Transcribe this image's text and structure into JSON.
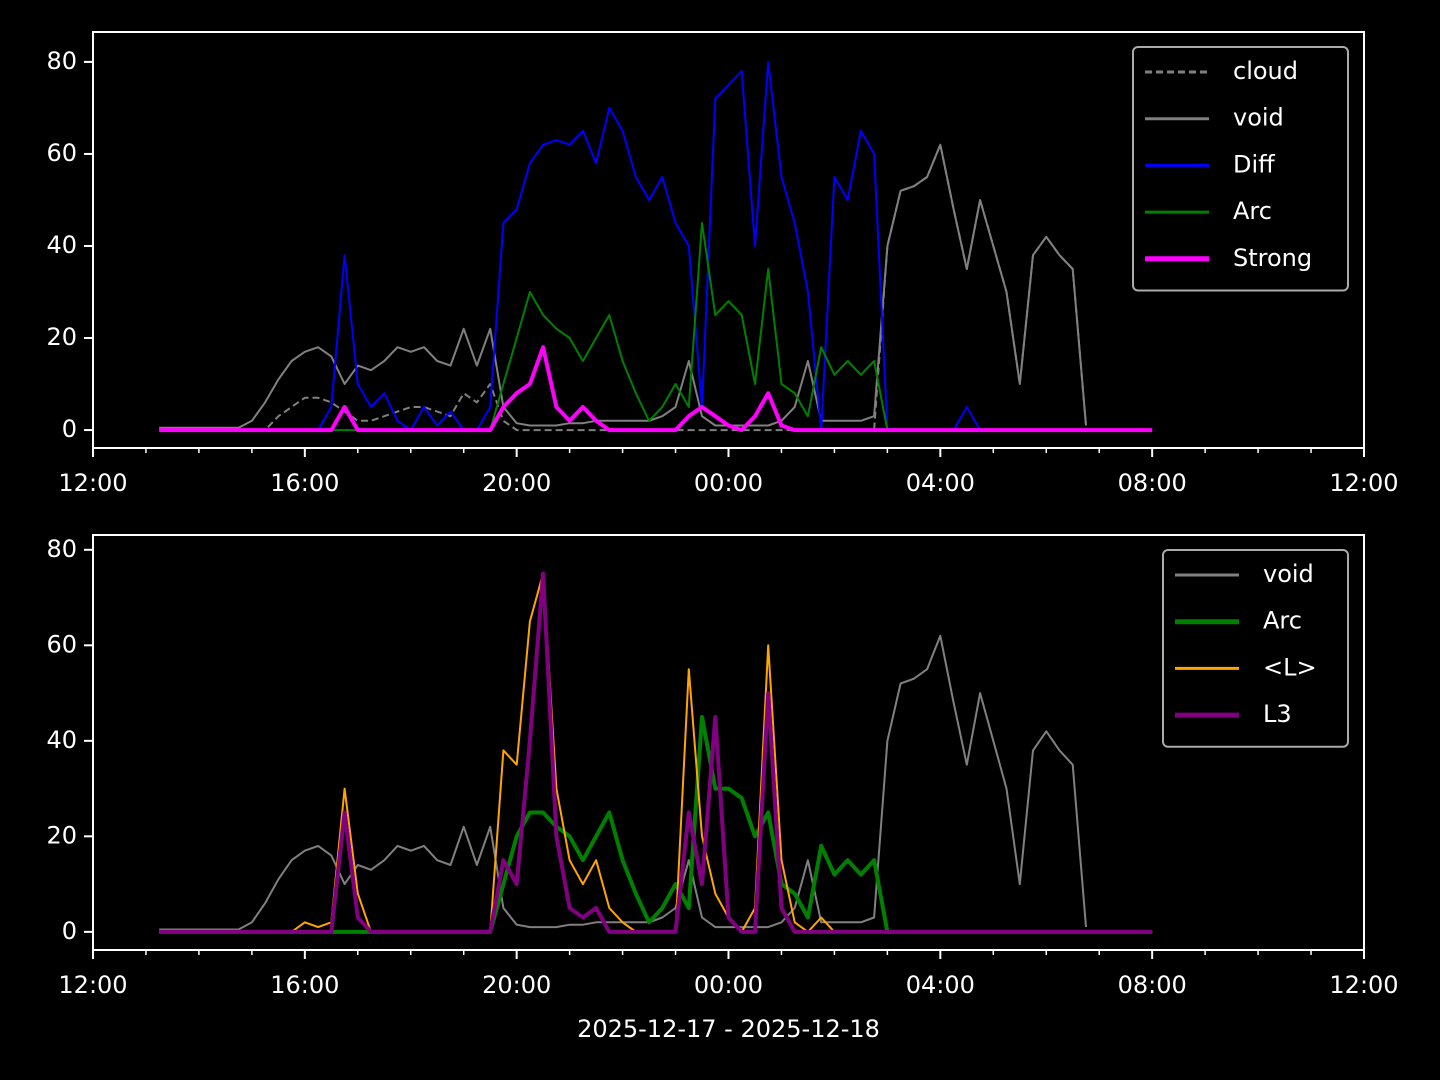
{
  "chart_data": [
    {
      "type": "line",
      "x": [
        1.25,
        1.5,
        1.75,
        2,
        2.25,
        2.5,
        2.75,
        3,
        3.25,
        3.5,
        3.75,
        4,
        4.25,
        4.5,
        4.75,
        5,
        5.25,
        5.5,
        5.75,
        6,
        6.25,
        6.5,
        6.75,
        7,
        7.25,
        7.5,
        7.75,
        8,
        8.25,
        8.5,
        8.75,
        9,
        9.25,
        9.5,
        9.75,
        10,
        10.25,
        10.5,
        10.75,
        11,
        11.25,
        11.5,
        11.75,
        12,
        12.25,
        12.5,
        12.75,
        13,
        13.25,
        13.5,
        13.75,
        14,
        14.25,
        14.5,
        14.75,
        15,
        15.25,
        15.5,
        15.75,
        16,
        16.25,
        16.5,
        16.75,
        17,
        17.25,
        17.5,
        17.75,
        18,
        18.25,
        18.5,
        18.75,
        19,
        19.25,
        19.5,
        19.75,
        20
      ],
      "xlim": [
        0,
        24
      ],
      "xticks": [
        {
          "value": 0,
          "label": "12:00"
        },
        {
          "value": 4,
          "label": "16:00"
        },
        {
          "value": 8,
          "label": "20:00"
        },
        {
          "value": 12,
          "label": "00:00"
        },
        {
          "value": 16,
          "label": "04:00"
        },
        {
          "value": 20,
          "label": "08:00"
        },
        {
          "value": 24,
          "label": "12:00"
        }
      ],
      "xminorticks": [
        1,
        2,
        3,
        5,
        6,
        7,
        9,
        10,
        11,
        13,
        14,
        15,
        17,
        18,
        19,
        21,
        22,
        23
      ],
      "ylim": [
        -3.9,
        86.5
      ],
      "yticks": [
        0,
        20,
        40,
        60,
        80
      ],
      "legend": "upper right",
      "series": [
        {
          "name": "cloud",
          "color": "#808080",
          "width": 2,
          "style": "dashed",
          "values": [
            0,
            0,
            0,
            0,
            0,
            0,
            0,
            0,
            0,
            3,
            5,
            7,
            7,
            6,
            4,
            2,
            2,
            3,
            4,
            5,
            5,
            4,
            3,
            8,
            6,
            10,
            2,
            0,
            0,
            0,
            0,
            0,
            0,
            0,
            0,
            0,
            0,
            0,
            0,
            0,
            0,
            0,
            0,
            0,
            0,
            0,
            0,
            0,
            0,
            0,
            0,
            0,
            0,
            0,
            0,
            40,
            52,
            53,
            55,
            62,
            48,
            35,
            50,
            40,
            30,
            10,
            38,
            42,
            38,
            35,
            1,
            null,
            null,
            null,
            null,
            null
          ]
        },
        {
          "name": "void",
          "color": "#808080",
          "width": 2,
          "style": "solid",
          "values": [
            0.5,
            0.5,
            0.5,
            0.5,
            0.5,
            0.5,
            0.5,
            2,
            6,
            11,
            15,
            17,
            18,
            16,
            10,
            14,
            13,
            15,
            18,
            17,
            18,
            15,
            14,
            22,
            14,
            22,
            5,
            1.5,
            1,
            1,
            1,
            1.5,
            1.5,
            2,
            2,
            2,
            2,
            2,
            3,
            5,
            15,
            3,
            1,
            1,
            1,
            1,
            1,
            2,
            5,
            15,
            2,
            2,
            2,
            2,
            3,
            40,
            52,
            53,
            55,
            62,
            48,
            35,
            50,
            40,
            30,
            10,
            38,
            42,
            38,
            35,
            1,
            null,
            null,
            null,
            null,
            null
          ]
        },
        {
          "name": "Diff",
          "color": "#0000ff",
          "width": 2,
          "style": "solid",
          "values": [
            0,
            0,
            0,
            0,
            0,
            0,
            0,
            0,
            0,
            0,
            0,
            0,
            0,
            5,
            38,
            10,
            5,
            8,
            2,
            0,
            5,
            1,
            4,
            0,
            0,
            5,
            45,
            48,
            58,
            62,
            63,
            62,
            65,
            58,
            70,
            65,
            55,
            50,
            55,
            45,
            40,
            5,
            72,
            75,
            78,
            40,
            80,
            55,
            45,
            30,
            0,
            55,
            50,
            65,
            60,
            0,
            0,
            0,
            0,
            0,
            0,
            5,
            0,
            0,
            0,
            0,
            0,
            0,
            0,
            0,
            0,
            0,
            0,
            0,
            0,
            0
          ]
        },
        {
          "name": "Arc",
          "color": "#008000",
          "width": 2,
          "style": "solid",
          "values": [
            0,
            0,
            0,
            0,
            0,
            0,
            0,
            0,
            0,
            0,
            0,
            0,
            0,
            0,
            0,
            0,
            0,
            0,
            0,
            0,
            0,
            0,
            0,
            0,
            0,
            0,
            10,
            20,
            30,
            25,
            22,
            20,
            15,
            20,
            25,
            15,
            8,
            2,
            5,
            10,
            5,
            45,
            25,
            28,
            25,
            10,
            35,
            10,
            8,
            3,
            18,
            12,
            15,
            12,
            15,
            0,
            0,
            0,
            0,
            0,
            0,
            0,
            0,
            0,
            0,
            0,
            0,
            0,
            0,
            0,
            0,
            0,
            0,
            0,
            0,
            0
          ]
        },
        {
          "name": "Strong",
          "color": "#ff00ff",
          "width": 4,
          "style": "solid",
          "values": [
            0,
            0,
            0,
            0,
            0,
            0,
            0,
            0,
            0,
            0,
            0,
            0,
            0,
            0,
            5,
            0,
            0,
            0,
            0,
            0,
            0,
            0,
            0,
            0,
            0,
            0,
            5,
            8,
            10,
            18,
            5,
            2,
            5,
            2,
            0,
            0,
            0,
            0,
            0,
            0,
            3,
            5,
            3,
            1,
            0,
            3,
            8,
            1,
            0,
            0,
            0,
            0,
            0,
            0,
            0,
            0,
            0,
            0,
            0,
            0,
            0,
            0,
            0,
            0,
            0,
            0,
            0,
            0,
            0,
            0,
            0,
            0,
            0,
            0,
            0,
            0
          ]
        }
      ]
    },
    {
      "type": "line",
      "x": [
        1.25,
        1.5,
        1.75,
        2,
        2.25,
        2.5,
        2.75,
        3,
        3.25,
        3.5,
        3.75,
        4,
        4.25,
        4.5,
        4.75,
        5,
        5.25,
        5.5,
        5.75,
        6,
        6.25,
        6.5,
        6.75,
        7,
        7.25,
        7.5,
        7.75,
        8,
        8.25,
        8.5,
        8.75,
        9,
        9.25,
        9.5,
        9.75,
        10,
        10.25,
        10.5,
        10.75,
        11,
        11.25,
        11.5,
        11.75,
        12,
        12.25,
        12.5,
        12.75,
        13,
        13.25,
        13.5,
        13.75,
        14,
        14.25,
        14.5,
        14.75,
        15,
        15.25,
        15.5,
        15.75,
        16,
        16.25,
        16.5,
        16.75,
        17,
        17.25,
        17.5,
        17.75,
        18,
        18.25,
        18.5,
        18.75,
        19,
        19.25,
        19.5,
        19.75,
        20
      ],
      "xlim": [
        0,
        24
      ],
      "xticks": [
        {
          "value": 0,
          "label": "12:00"
        },
        {
          "value": 4,
          "label": "16:00"
        },
        {
          "value": 8,
          "label": "20:00"
        },
        {
          "value": 12,
          "label": "00:00"
        },
        {
          "value": 16,
          "label": "04:00"
        },
        {
          "value": 20,
          "label": "08:00"
        },
        {
          "value": 24,
          "label": "12:00"
        }
      ],
      "xminorticks": [
        1,
        2,
        3,
        5,
        6,
        7,
        9,
        10,
        11,
        13,
        14,
        15,
        17,
        18,
        19,
        21,
        22,
        23
      ],
      "xlabel": "2025-12-17 - 2025-12-18",
      "ylim": [
        -3.8,
        83.1
      ],
      "yticks": [
        0,
        20,
        40,
        60,
        80
      ],
      "legend": "upper right",
      "series": [
        {
          "name": "void",
          "color": "#808080",
          "width": 2,
          "style": "solid",
          "values": [
            0.5,
            0.5,
            0.5,
            0.5,
            0.5,
            0.5,
            0.5,
            2,
            6,
            11,
            15,
            17,
            18,
            16,
            10,
            14,
            13,
            15,
            18,
            17,
            18,
            15,
            14,
            22,
            14,
            22,
            5,
            1.5,
            1,
            1,
            1,
            1.5,
            1.5,
            2,
            2,
            2,
            2,
            2,
            3,
            5,
            15,
            3,
            1,
            1,
            1,
            1,
            1,
            2,
            5,
            15,
            2,
            2,
            2,
            2,
            3,
            40,
            52,
            53,
            55,
            62,
            48,
            35,
            50,
            40,
            30,
            10,
            38,
            42,
            38,
            35,
            1,
            null,
            null,
            null,
            null,
            null
          ]
        },
        {
          "name": "Arc",
          "color": "#008000",
          "width": 4,
          "style": "solid",
          "values": [
            0,
            0,
            0,
            0,
            0,
            0,
            0,
            0,
            0,
            0,
            0,
            0,
            0,
            0,
            0,
            0,
            0,
            0,
            0,
            0,
            0,
            0,
            0,
            0,
            0,
            0,
            10,
            20,
            25,
            25,
            22,
            20,
            15,
            20,
            25,
            15,
            8,
            2,
            5,
            10,
            5,
            45,
            30,
            30,
            28,
            20,
            25,
            10,
            8,
            3,
            18,
            12,
            15,
            12,
            15,
            0,
            0,
            0,
            0,
            0,
            0,
            0,
            0,
            0,
            0,
            0,
            0,
            0,
            0,
            0,
            0,
            0,
            0,
            0,
            0,
            0
          ]
        },
        {
          "name": "<L>",
          "color": "#ffa500",
          "width": 2,
          "style": "solid",
          "values": [
            0,
            0,
            0,
            0,
            0,
            0,
            0,
            0,
            0,
            0,
            0,
            2,
            1,
            2,
            30,
            8,
            0,
            0,
            0,
            0,
            0,
            0,
            0,
            0,
            0,
            0,
            38,
            35,
            65,
            75,
            30,
            15,
            10,
            15,
            5,
            2,
            0,
            0,
            0,
            0,
            55,
            20,
            8,
            3,
            0,
            5,
            60,
            15,
            2,
            0,
            3,
            0,
            0,
            0,
            0,
            0,
            0,
            0,
            0,
            0,
            0,
            0,
            0,
            0,
            0,
            0,
            0,
            0,
            0,
            0,
            0,
            0,
            0,
            0,
            0,
            0
          ]
        },
        {
          "name": "L3",
          "color": "#800080",
          "width": 4,
          "style": "solid",
          "values": [
            0,
            0,
            0,
            0,
            0,
            0,
            0,
            0,
            0,
            0,
            0,
            0,
            0,
            0,
            25,
            3,
            0,
            0,
            0,
            0,
            0,
            0,
            0,
            0,
            0,
            0,
            15,
            10,
            40,
            75,
            20,
            5,
            3,
            5,
            0,
            0,
            0,
            0,
            0,
            0,
            25,
            10,
            45,
            3,
            0,
            0,
            50,
            5,
            0,
            0,
            0,
            0,
            0,
            0,
            0,
            0,
            0,
            0,
            0,
            0,
            0,
            0,
            0,
            0,
            0,
            0,
            0,
            0,
            0,
            0,
            0,
            0,
            0,
            0,
            0,
            0
          ]
        }
      ]
    }
  ]
}
